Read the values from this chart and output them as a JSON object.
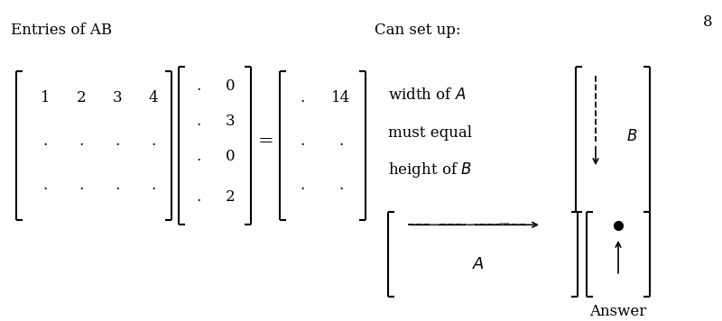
{
  "bg_color": "#ffffff",
  "fig_width": 8.0,
  "fig_height": 3.56,
  "dpi": 100,
  "font_family": "serif",
  "fs_main": 12,
  "fs_small": 11,
  "fs_large": 13,
  "page_num": "8",
  "label_entries": "Entries of AB",
  "label_cansetup": "Can set up:",
  "label_width": "width of ",
  "label_A_w": "$A$",
  "label_mustequal": "must equal",
  "label_height": "height of ",
  "label_B_h": "$B$",
  "label_B": "$B$",
  "label_A": "$A$",
  "label_answer": "Answer"
}
